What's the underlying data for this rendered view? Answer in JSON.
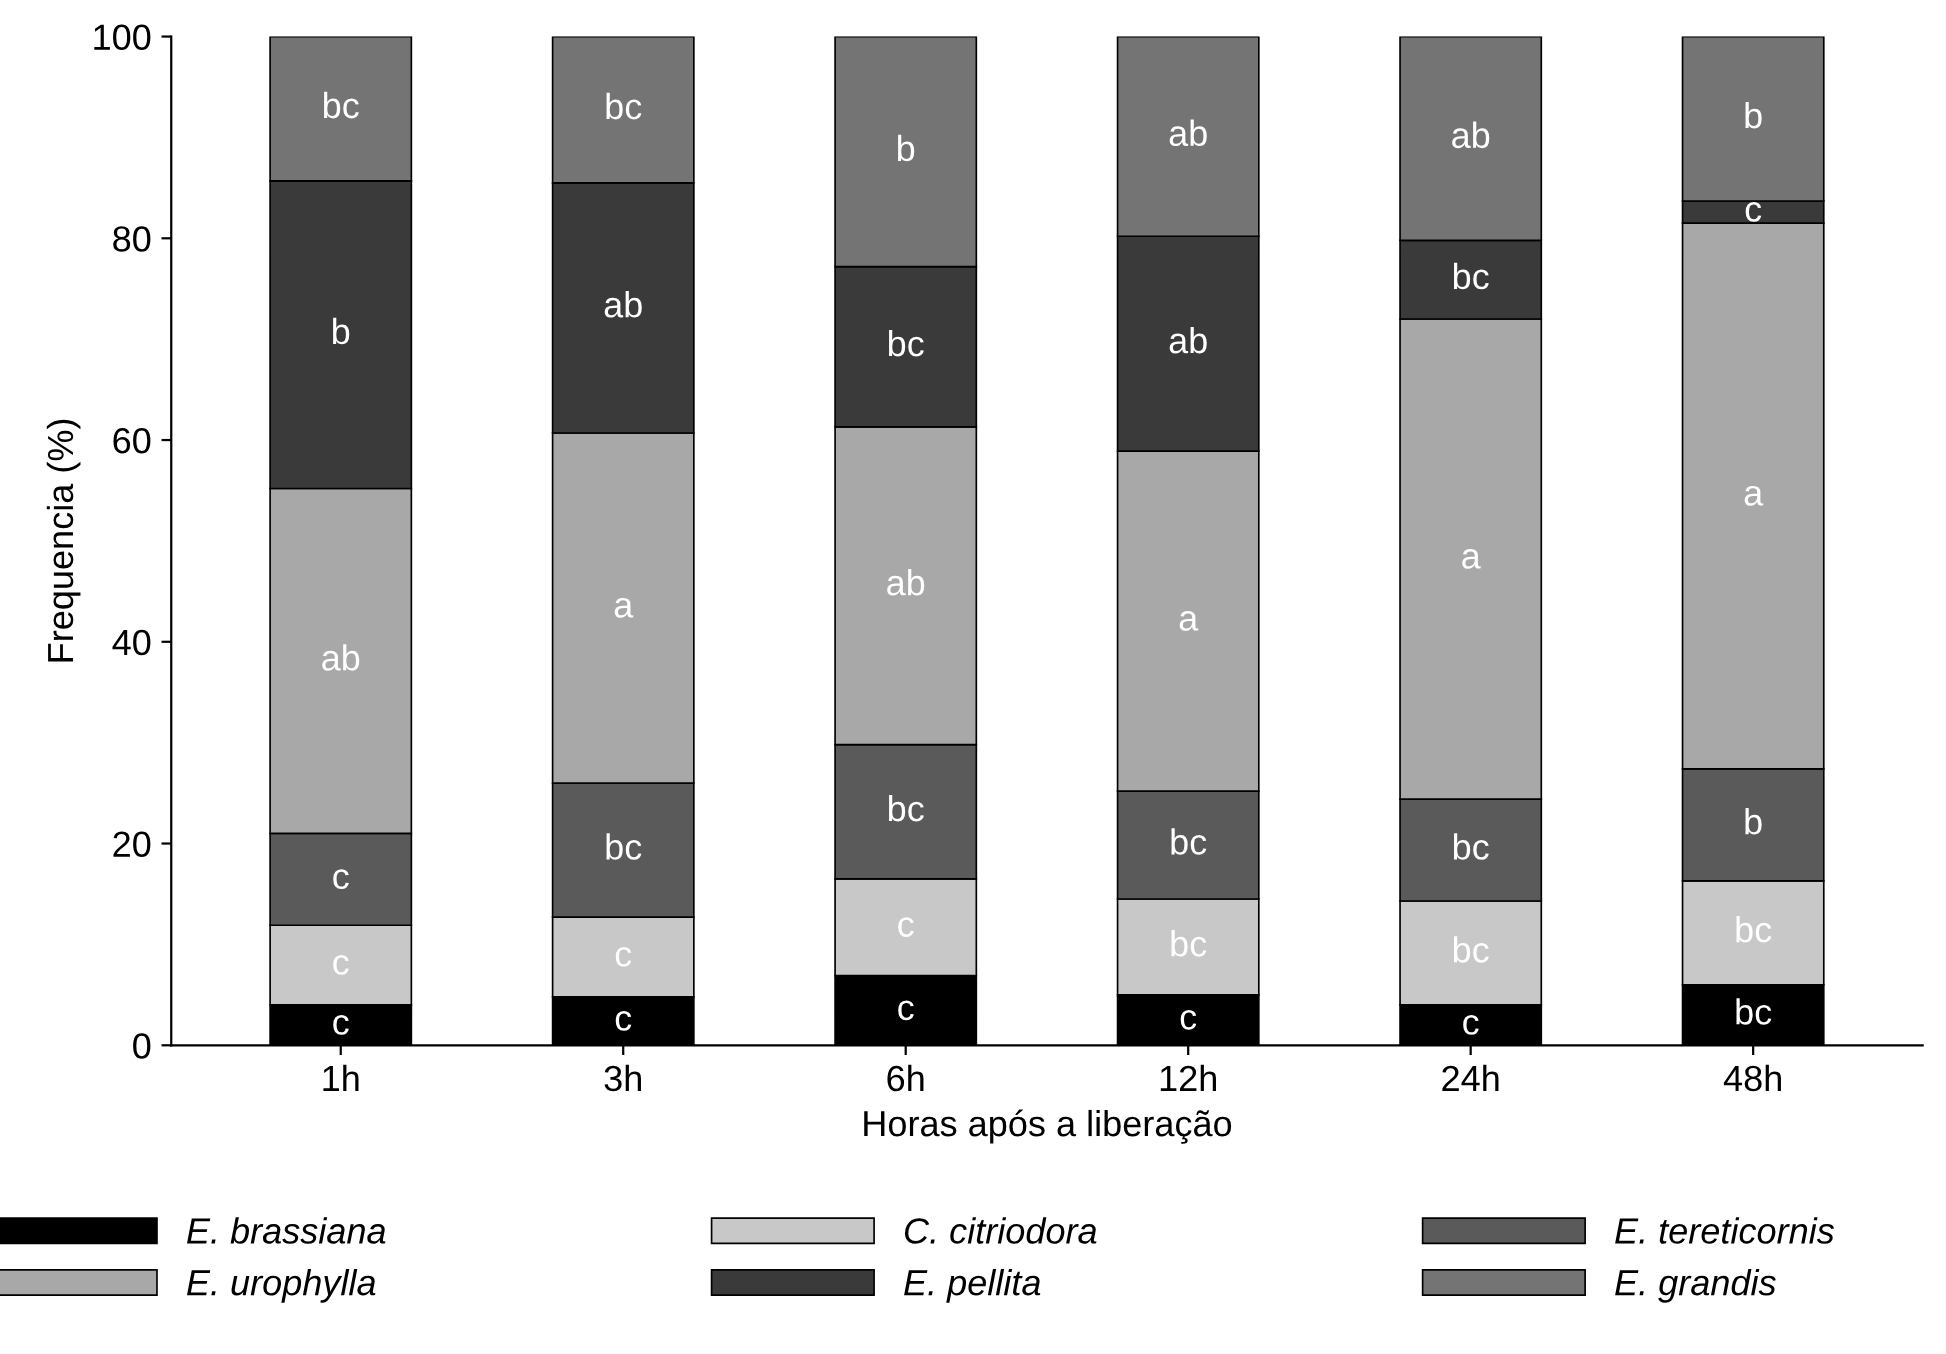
{
  "chart_data": {
    "type": "bar",
    "stacked": true,
    "xlabel": "Horas após a liberação",
    "ylabel": "Frequencia (%)",
    "categories": [
      "1h",
      "3h",
      "6h",
      "12h",
      "24h",
      "48h"
    ],
    "ylim": [
      0,
      100
    ],
    "yticks": [
      0,
      20,
      40,
      60,
      80,
      100
    ],
    "legend": "bottom",
    "series": [
      {
        "name": "E. brassiana",
        "color": "#000000",
        "values": [
          4.0,
          4.8,
          6.9,
          5.0,
          4.0,
          6.0
        ]
      },
      {
        "name": "C. citriodora",
        "color": "#c8c8c8",
        "values": [
          7.9,
          7.9,
          9.6,
          9.5,
          10.3,
          10.3
        ]
      },
      {
        "name": "E. tereticornis",
        "color": "#5a5a5a",
        "values": [
          9.1,
          13.3,
          13.3,
          10.7,
          10.1,
          11.1
        ]
      },
      {
        "name": "E. urophylla",
        "color": "#a8a8a8",
        "values": [
          34.2,
          34.7,
          31.5,
          33.7,
          47.6,
          54.1
        ]
      },
      {
        "name": "E. pellita",
        "color": "#3a3a3a",
        "values": [
          30.5,
          24.8,
          15.9,
          21.3,
          7.8,
          2.2
        ]
      },
      {
        "name": "E. grandis",
        "color": "#747474",
        "values": [
          14.3,
          14.5,
          22.8,
          19.8,
          20.2,
          16.3
        ]
      }
    ],
    "annotations": [
      "c",
      "c",
      "c",
      "ab",
      "b",
      "bc",
      "c",
      "c",
      "bc",
      "a",
      "ab",
      "bc",
      "c",
      "c",
      "bc",
      "ab",
      "bc",
      "b",
      "c",
      "bc",
      "bc",
      "a",
      "ab",
      "ab",
      "c",
      "bc",
      "bc",
      "a",
      "bc",
      "ab",
      "bc",
      "bc",
      "b",
      "a",
      "c",
      "b"
    ]
  }
}
